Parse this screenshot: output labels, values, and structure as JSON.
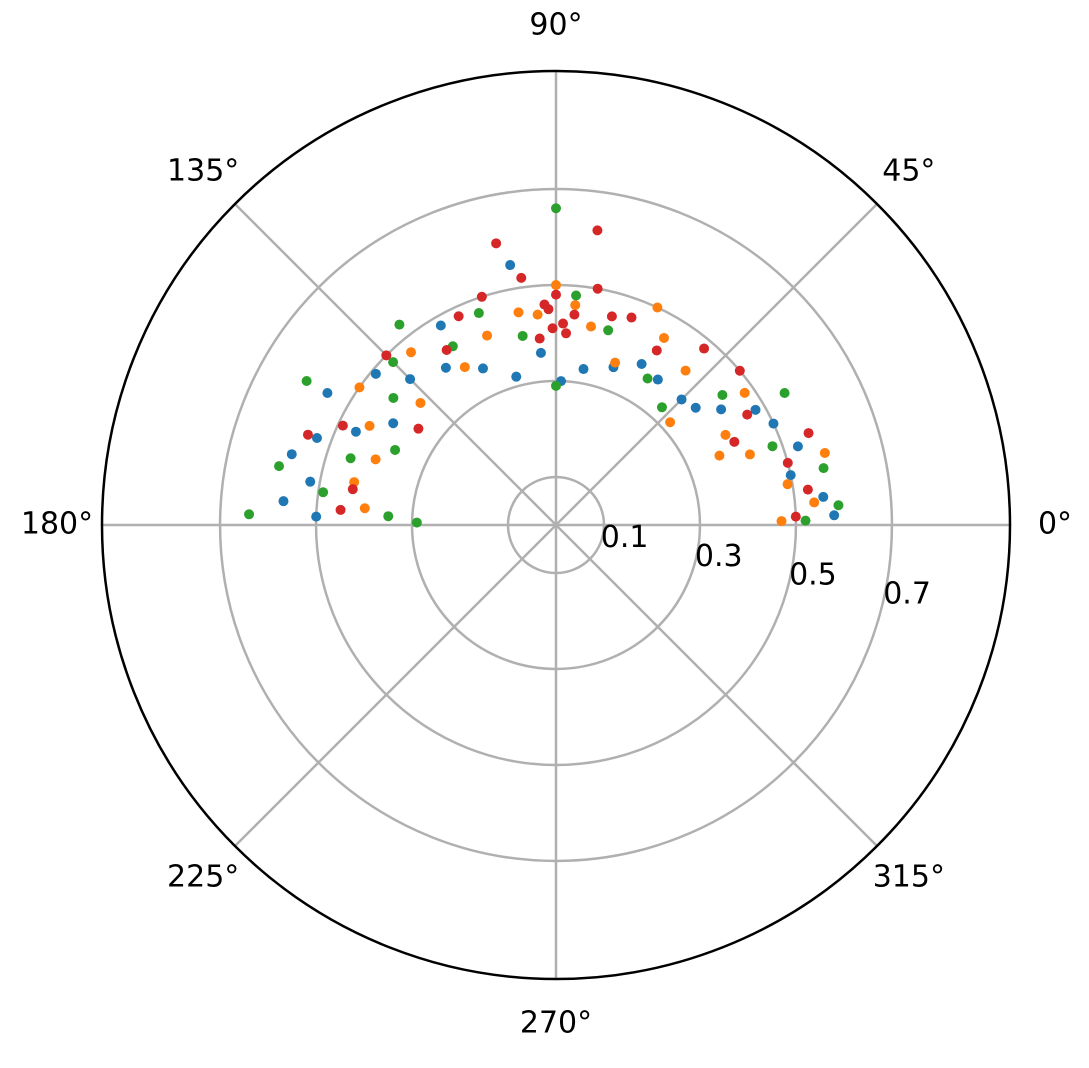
{
  "chart_data": {
    "type": "polar-scatter",
    "rlim": [
      0,
      0.946
    ],
    "rticks": [
      0.1,
      0.3,
      0.5,
      0.7
    ],
    "thetaticks": [
      {
        "value": 0,
        "label": "0°"
      },
      {
        "value": 45,
        "label": "45°"
      },
      {
        "value": 90,
        "label": "90°"
      },
      {
        "value": 135,
        "label": "135°"
      },
      {
        "value": 180,
        "label": "180°"
      },
      {
        "value": 225,
        "label": "225°"
      },
      {
        "value": 270,
        "label": "270°"
      },
      {
        "value": 315,
        "label": "315°"
      }
    ],
    "grid": true,
    "series": [
      {
        "color": "#1f77b4",
        "theta": [
          2,
          6,
          12,
          18,
          25,
          30,
          35,
          40,
          45,
          55,
          62,
          70,
          80,
          88,
          95,
          105,
          115,
          125,
          135,
          140,
          148,
          155,
          160,
          165,
          170,
          175,
          178,
          150,
          120,
          100
        ],
        "r": [
          0.58,
          0.56,
          0.5,
          0.53,
          0.5,
          0.48,
          0.42,
          0.38,
          0.37,
          0.37,
          0.38,
          0.35,
          0.33,
          0.3,
          0.36,
          0.32,
          0.36,
          0.4,
          0.43,
          0.49,
          0.4,
          0.46,
          0.53,
          0.57,
          0.52,
          0.57,
          0.5,
          0.55,
          0.48,
          0.55
        ]
      },
      {
        "color": "#ff7f0e",
        "theta": [
          1,
          5,
          10,
          15,
          20,
          23,
          28,
          35,
          42,
          50,
          60,
          70,
          80,
          85,
          90,
          95,
          100,
          110,
          120,
          130,
          138,
          145,
          152,
          160,
          168,
          175,
          65
        ],
        "r": [
          0.47,
          0.54,
          0.49,
          0.58,
          0.43,
          0.37,
          0.4,
          0.48,
          0.32,
          0.42,
          0.45,
          0.36,
          0.42,
          0.46,
          0.5,
          0.44,
          0.45,
          0.42,
          0.38,
          0.47,
          0.38,
          0.5,
          0.44,
          0.4,
          0.43,
          0.4,
          0.5
        ]
      },
      {
        "color": "#2ca02c",
        "theta": [
          1,
          4,
          12,
          20,
          30,
          38,
          48,
          58,
          75,
          90,
          90,
          100,
          110,
          120,
          128,
          135,
          142,
          150,
          155,
          162,
          168,
          172,
          178,
          179,
          177,
          85
        ],
        "r": [
          0.52,
          0.59,
          0.57,
          0.48,
          0.55,
          0.44,
          0.33,
          0.36,
          0.42,
          0.66,
          0.29,
          0.4,
          0.47,
          0.43,
          0.53,
          0.48,
          0.43,
          0.6,
          0.37,
          0.45,
          0.59,
          0.49,
          0.64,
          0.29,
          0.35,
          0.48
        ]
      },
      {
        "color": "#d62728",
        "theta": [
          2,
          8,
          15,
          20,
          25,
          30,
          40,
          50,
          60,
          70,
          75,
          80,
          82,
          85,
          88,
          90,
          92,
          95,
          98,
          102,
          108,
          115,
          122,
          135,
          145,
          155,
          160,
          170,
          176,
          87,
          93,
          91
        ],
        "r": [
          0.5,
          0.53,
          0.5,
          0.56,
          0.41,
          0.46,
          0.5,
          0.48,
          0.42,
          0.46,
          0.45,
          0.5,
          0.62,
          0.44,
          0.42,
          0.48,
          0.45,
          0.39,
          0.52,
          0.6,
          0.5,
          0.48,
          0.43,
          0.5,
          0.35,
          0.49,
          0.55,
          0.43,
          0.45,
          0.4,
          0.46,
          0.41
        ]
      }
    ]
  }
}
